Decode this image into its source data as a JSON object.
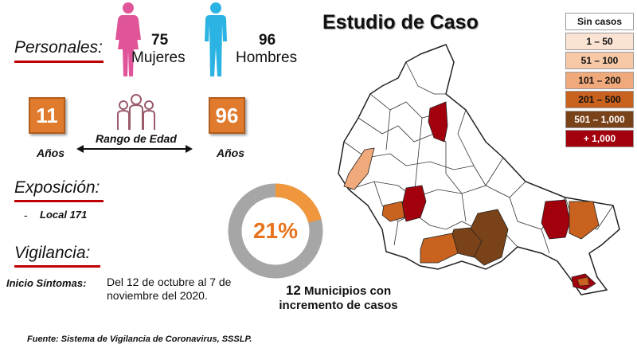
{
  "title": "Estudio de Caso",
  "personales": {
    "label": "Personales:",
    "mujeres_count": "75",
    "mujeres_label": "Mujeres",
    "hombres_count": "96",
    "hombres_label": "Hombres"
  },
  "edad": {
    "min": "11",
    "max": "96",
    "unit": "Años",
    "range_label": "Rango de Edad"
  },
  "exposicion": {
    "label": "Exposición:",
    "dash": "-",
    "item": "Local  171"
  },
  "vigilancia": {
    "label": "Vigilancia:",
    "inicio_label": "Inicio Síntomas:",
    "inicio_text": "Del 12 de octubre al 7 de noviembre del 2020."
  },
  "incremento": {
    "percent_text": "21%",
    "percent_value": 21,
    "count": "12",
    "text_line1": "Municipios con",
    "text_line2": "incremento de casos"
  },
  "legend": [
    {
      "label": "Sin casos",
      "color": "#ffffff"
    },
    {
      "label": "1 – 50",
      "color": "#fbe3d3"
    },
    {
      "label": "51 – 100",
      "color": "#f7c9a7"
    },
    {
      "label": "101 – 200",
      "color": "#f0a97a"
    },
    {
      "label": "201 – 500",
      "color": "#c8621e"
    },
    {
      "label": "501 – 1,000",
      "color": "#7a4218"
    },
    {
      "label": "+ 1,000",
      "color": "#a3000e"
    }
  ],
  "source": "Fuente: Sistema de Vigilancia de Coronavirus, SSSLP.",
  "colors": {
    "accent_orange": "#e8731d",
    "underline_red": "#c00000",
    "female": "#e0559a",
    "male": "#2bb3e3",
    "donut_gray": "#a6a6a6"
  }
}
